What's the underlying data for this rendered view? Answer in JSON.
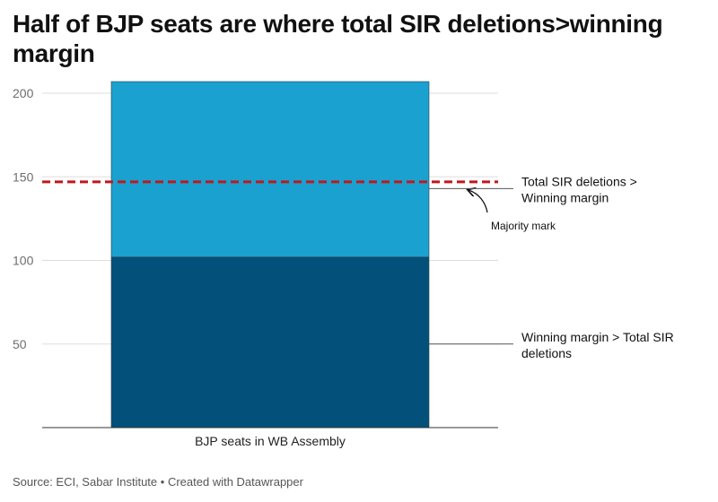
{
  "chart_data": {
    "type": "bar",
    "stacked": true,
    "title": "Half of BJP seats are where total SIR deletions>winning margin",
    "categories": [
      "BJP seats in WB Assembly"
    ],
    "series": [
      {
        "name": "Winning margin > Total SIR deletions",
        "values": [
          102
        ],
        "color": "#03507a"
      },
      {
        "name": "Total SIR deletions > Winning margin",
        "values": [
          105
        ],
        "color": "#1aa1cf"
      }
    ],
    "ylim": [
      0,
      207
    ],
    "yticks": [
      50,
      100,
      150,
      200
    ],
    "grid": true,
    "reference_line": {
      "value": 147,
      "label": "Majority mark",
      "color": "#c0181e"
    }
  },
  "footer": {
    "source": "Source: ECI, Sabar Institute",
    "separator": "•",
    "credit": "Created with Datawrapper"
  }
}
